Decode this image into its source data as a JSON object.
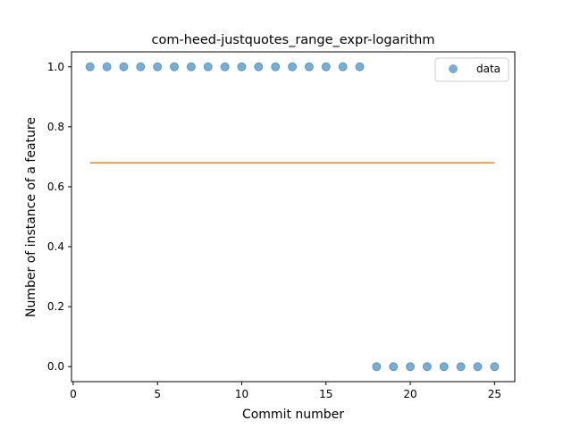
{
  "chart_data": {
    "type": "scatter",
    "title": "com-heed-justquotes_range_expr-logarithm",
    "xlabel": "Commit number",
    "ylabel": "Number of instance of a feature",
    "xlim": [
      -0.1,
      26.2
    ],
    "ylim": [
      -0.05,
      1.05
    ],
    "xticks": [
      0,
      5,
      10,
      15,
      20,
      25
    ],
    "xtick_labels": [
      "0",
      "5",
      "10",
      "15",
      "20",
      "25"
    ],
    "yticks": [
      0.0,
      0.2,
      0.4,
      0.6,
      0.8,
      1.0
    ],
    "ytick_labels": [
      "0.0",
      "0.2",
      "0.4",
      "0.6",
      "0.8",
      "1.0"
    ],
    "grid": false,
    "legend_position": "top-right",
    "series": [
      {
        "name": "data",
        "type": "scatter",
        "color": "#1f77b4",
        "x": [
          1,
          2,
          3,
          4,
          5,
          6,
          7,
          8,
          9,
          10,
          11,
          12,
          13,
          14,
          15,
          16,
          17,
          18,
          19,
          20,
          21,
          22,
          23,
          24,
          25
        ],
        "y": [
          1,
          1,
          1,
          1,
          1,
          1,
          1,
          1,
          1,
          1,
          1,
          1,
          1,
          1,
          1,
          1,
          1,
          0,
          0,
          0,
          0,
          0,
          0,
          0,
          0
        ]
      },
      {
        "type": "line",
        "color": "#ff7f0e",
        "x": [
          1,
          25
        ],
        "y": [
          0.68,
          0.68
        ]
      }
    ]
  }
}
